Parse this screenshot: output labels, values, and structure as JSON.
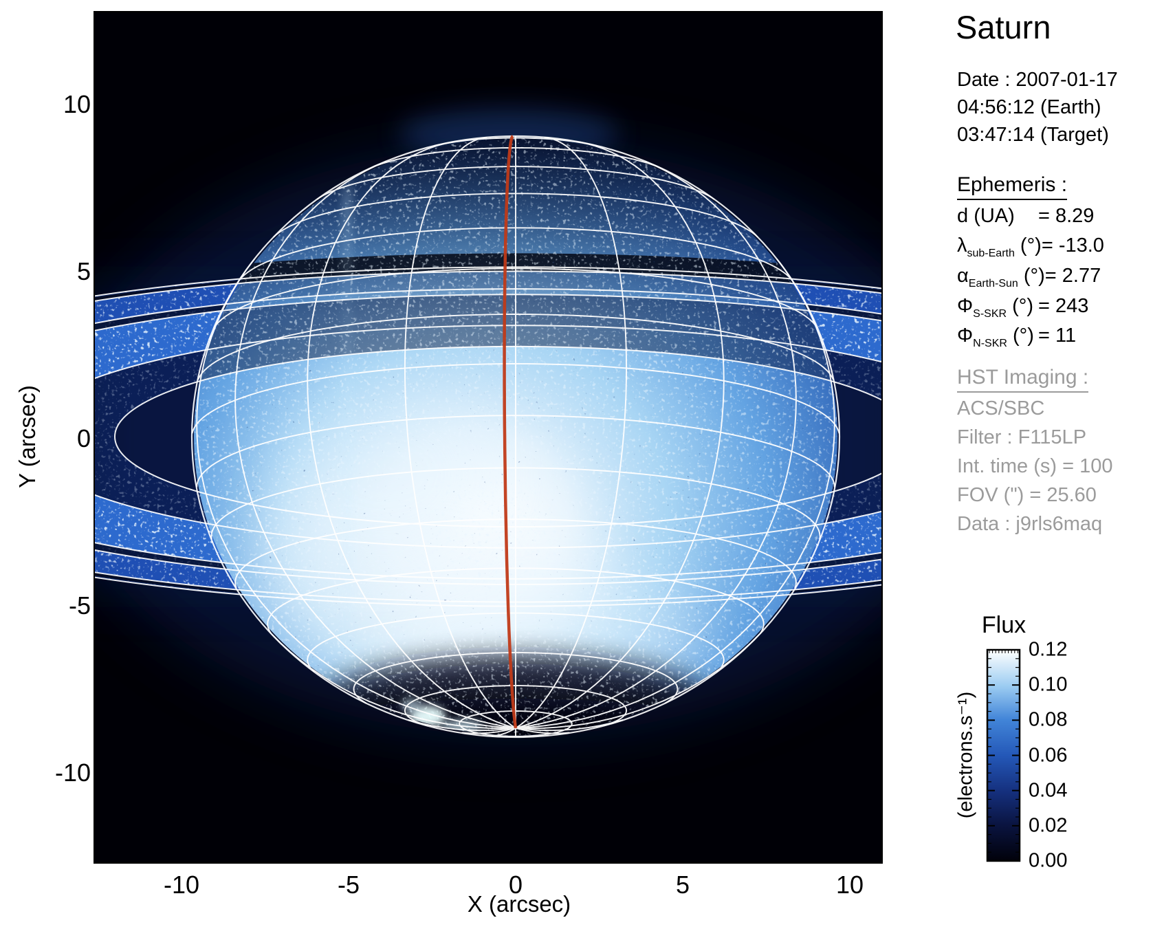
{
  "title": "Saturn",
  "header": {
    "date_line": "Date : 2007-01-17",
    "time_earth": "04:56:12 (Earth)",
    "time_target": "03:47:14 (Target)"
  },
  "ephemeris": {
    "heading": "Ephemeris :",
    "rows": [
      {
        "sym": "d",
        "sub": "",
        "unit": " (UA)",
        "value": "= 8.29"
      },
      {
        "sym": "λ",
        "sub": "sub-Earth",
        "unit": " (°)",
        "value": "= -13.0"
      },
      {
        "sym": "α",
        "sub": "Earth-Sun",
        "unit": " (°)",
        "value": "= 2.77"
      },
      {
        "sym": "Φ",
        "sub": "S-SKR",
        "unit": " (°)",
        "value": "= 243"
      },
      {
        "sym": "Φ",
        "sub": "N-SKR",
        "unit": " (°)",
        "value": "= 11"
      }
    ]
  },
  "hst": {
    "heading": "HST Imaging :",
    "lines": [
      "ACS/SBC",
      "Filter : F115LP",
      "Int. time (s) = 100",
      "FOV (\") = 25.60",
      "Data : j9rls6maq"
    ]
  },
  "colorbar": {
    "title": "Flux",
    "unit": "(electrons.s⁻¹)",
    "tick_labels": [
      "0.12",
      "0.10",
      "0.08",
      "0.06",
      "0.04",
      "0.02",
      "0.00"
    ]
  },
  "axes": {
    "x_label": "X (arcsec)",
    "y_label": "Y (arcsec)",
    "x_ticks": [
      "-10",
      "-5",
      "0",
      "5",
      "10"
    ],
    "y_ticks": [
      "10",
      "5",
      "0",
      "-5",
      "-10"
    ]
  },
  "colors": {
    "background": "#ffffff",
    "plot_background": "#000006",
    "overlay_grid": "#ffffff",
    "central_meridian": "#c03a18",
    "secondary_text": "#9b9b9b",
    "image_palette": [
      "#000005",
      "#0a1440",
      "#15307e",
      "#2458b8",
      "#4285d8",
      "#9dcdf2",
      "#ffffff"
    ]
  },
  "chart_data": {
    "type": "heatmap",
    "title": "Saturn",
    "subtitle": "HST ACS/SBC F115LP image with planetographic grid, ring outlines and central meridian overlay",
    "xlabel": "X (arcsec)",
    "ylabel": "Y (arcsec)",
    "xlim": [
      -12.6,
      11.0
    ],
    "ylim": [
      -12.8,
      12.7
    ],
    "xticks": [
      -10,
      -5,
      0,
      5,
      10
    ],
    "yticks": [
      10,
      5,
      0,
      -5,
      -10
    ],
    "grid": false,
    "colorbar": {
      "label": "Flux (electrons.s-1)",
      "range": [
        0.0,
        0.12
      ],
      "ticks": [
        0.0,
        0.02,
        0.04,
        0.06,
        0.08,
        0.1,
        0.12
      ],
      "position": "right",
      "palette": "black-blue-white"
    },
    "observation": {
      "date": "2007-01-17",
      "time_earth": "04:56:12",
      "time_target": "03:47:14",
      "d_UA": 8.29,
      "lambda_sub_earth_deg": -13.0,
      "alpha_earth_sun_deg": 2.77,
      "phi_S_SKR_deg": 243,
      "phi_N_SKR_deg": 11,
      "instrument": "ACS/SBC",
      "filter": "F115LP",
      "int_time_s": 100,
      "fov_arcsec": 25.6,
      "dataset": "j9rls6maq"
    },
    "scene": {
      "planet_center_arcsec": [
        0,
        0
      ],
      "equatorial_radius_arcsec": 9.7,
      "polar_radius_arcsec": 9.0,
      "sub_earth_latitude_deg": -13.0,
      "ring_edge_radii_arcsec": [
        12.0,
        14.8,
        18.9,
        19.6,
        22.0,
        22.6
      ],
      "visible_pole": "south",
      "aurora": "bright UV auroral emission near south pole"
    }
  }
}
